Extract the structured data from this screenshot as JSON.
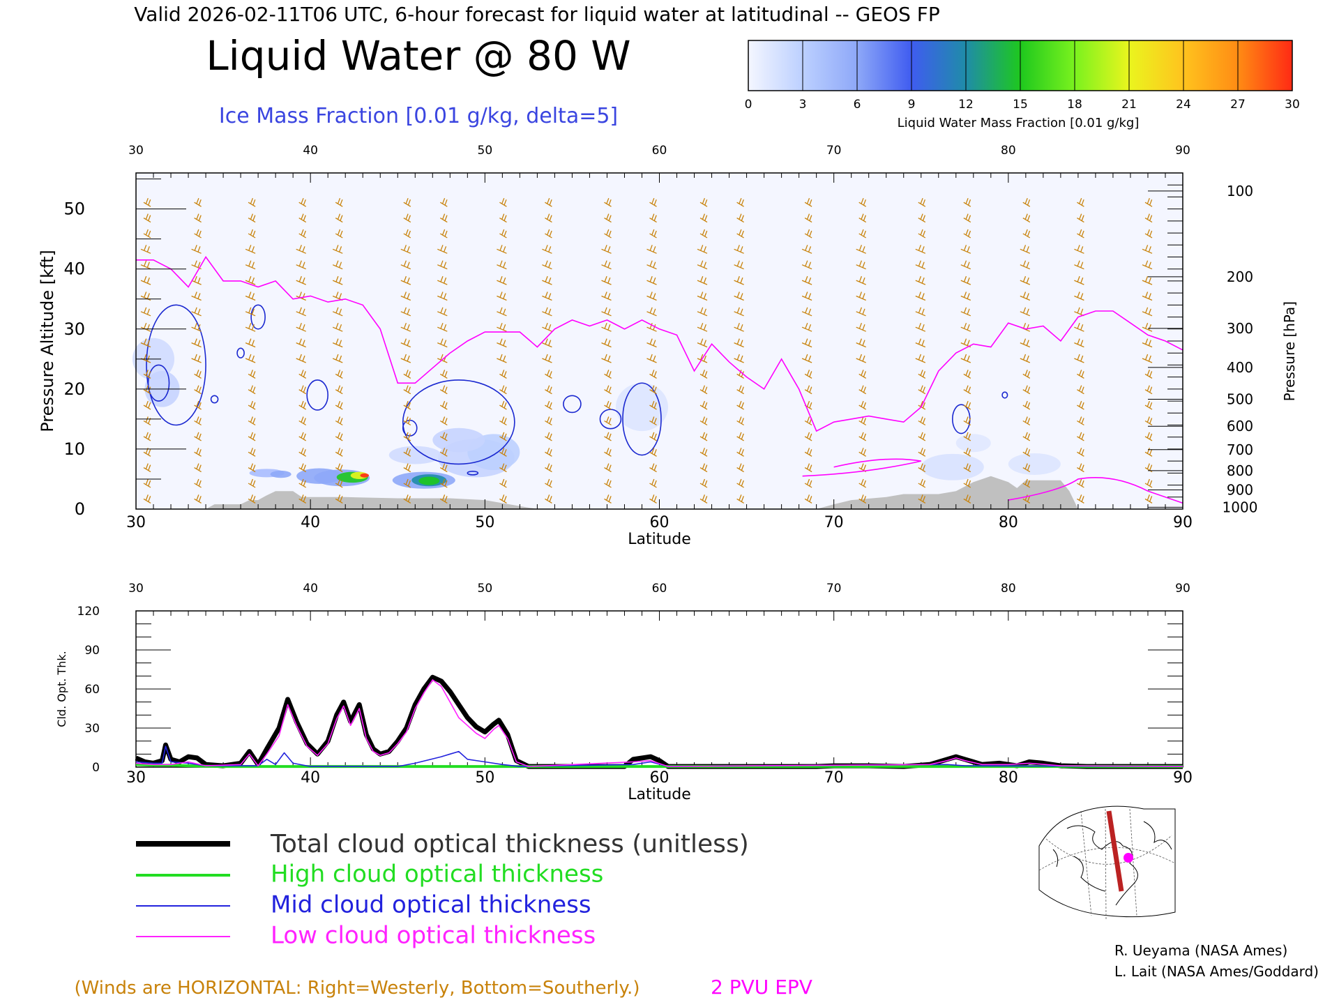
{
  "header": {
    "valid_line": "Valid 2026-02-11T06 UTC, 6-hour forecast for liquid water at latitudinal -- GEOS FP",
    "title": "Liquid Water @ 80 W",
    "ice_label": "Ice Mass Fraction [0.01 g/kg, delta=5]"
  },
  "colorbar": {
    "ticks": [
      "0",
      "3",
      "6",
      "9",
      "12",
      "15",
      "18",
      "21",
      "24",
      "27",
      "30"
    ],
    "label": "Liquid Water Mass Fraction [0.01 g/kg]",
    "colors": [
      "#f4f6ff",
      "#bcd0ff",
      "#8ea8f8",
      "#3f5cf0",
      "#1f8ca8",
      "#1ec81e",
      "#7af21e",
      "#eaf51e",
      "#ffc31e",
      "#ff8c14",
      "#ff2a14"
    ]
  },
  "colors": {
    "wind_barb": "#c8820a",
    "pvu": "#ff00ff",
    "ice": "#1a28d0",
    "terrain": "#c0c0c0",
    "ice_text": "#3a45e0",
    "total_line": "#000000",
    "high_line": "#22dd22",
    "mid_line": "#2222dd",
    "low_line": "#ff22ff"
  },
  "chart_data": [
    {
      "type": "heatmap",
      "xlabel": "Latitude",
      "ylabel_left": "Pressure Altitude [kft]",
      "ylabel_right": "Pressure [hPa]",
      "x_ticks": [
        "30",
        "40",
        "50",
        "60",
        "70",
        "80",
        "90"
      ],
      "top_ticks": [
        "30",
        "40",
        "50",
        "60",
        "70",
        "80",
        "90"
      ],
      "xlim": [
        30,
        90
      ],
      "ylim": [
        0,
        56
      ],
      "y_ticks": [
        "0",
        "10",
        "20",
        "30",
        "40",
        "50"
      ],
      "pressure_ticks": [
        {
          "label": "100",
          "kft": 53.0
        },
        {
          "label": "200",
          "kft": 38.7
        },
        {
          "label": "300",
          "kft": 30.1
        },
        {
          "label": "400",
          "kft": 23.6
        },
        {
          "label": "500",
          "kft": 18.3
        },
        {
          "label": "600",
          "kft": 13.8
        },
        {
          "label": "700",
          "kft": 9.9
        },
        {
          "label": "800",
          "kft": 6.4
        },
        {
          "label": "900",
          "kft": 3.2
        },
        {
          "label": "1000",
          "kft": 0.3
        }
      ],
      "pvu_2_line": [
        [
          30,
          41.5
        ],
        [
          31,
          41.5
        ],
        [
          32,
          40
        ],
        [
          33,
          37
        ],
        [
          34,
          42
        ],
        [
          35,
          38
        ],
        [
          36,
          38
        ],
        [
          37,
          37
        ],
        [
          38,
          38
        ],
        [
          39,
          35
        ],
        [
          40,
          35.5
        ],
        [
          41,
          34.5
        ],
        [
          42,
          35
        ],
        [
          43,
          34
        ],
        [
          44,
          30
        ],
        [
          45,
          21
        ],
        [
          46,
          21
        ],
        [
          47,
          23.5
        ],
        [
          48,
          26
        ],
        [
          49,
          28
        ],
        [
          50,
          29.5
        ],
        [
          51,
          29.5
        ],
        [
          52,
          29.5
        ],
        [
          53,
          27
        ],
        [
          54,
          30
        ],
        [
          55,
          31.5
        ],
        [
          56,
          30.5
        ],
        [
          57,
          31.5
        ],
        [
          58,
          30
        ],
        [
          59,
          31.5
        ],
        [
          60,
          30
        ],
        [
          61,
          29
        ],
        [
          62,
          23
        ],
        [
          63,
          27.5
        ],
        [
          64,
          24.5
        ],
        [
          65,
          22
        ],
        [
          66,
          20
        ],
        [
          67,
          25
        ],
        [
          68,
          20
        ],
        [
          69,
          13
        ],
        [
          70,
          14.5
        ],
        [
          71,
          15
        ],
        [
          72,
          15.5
        ],
        [
          73,
          15
        ],
        [
          74,
          14.5
        ],
        [
          75,
          17
        ],
        [
          76,
          23
        ],
        [
          77,
          26
        ],
        [
          78,
          27.5
        ],
        [
          79,
          27
        ],
        [
          80,
          31
        ],
        [
          81,
          30
        ],
        [
          82,
          30.5
        ],
        [
          83,
          28
        ],
        [
          84,
          32
        ],
        [
          85,
          33
        ],
        [
          86,
          33
        ],
        [
          87,
          31
        ],
        [
          88,
          29
        ],
        [
          89,
          28
        ],
        [
          90,
          26.5
        ]
      ],
      "terrain_kft": [
        [
          30,
          0
        ],
        [
          34,
          0
        ],
        [
          34.5,
          0.8
        ],
        [
          36,
          0.8
        ],
        [
          36.5,
          1.5
        ],
        [
          37,
          1.5
        ],
        [
          37.5,
          2.3
        ],
        [
          38,
          3
        ],
        [
          39,
          3
        ],
        [
          39.5,
          2
        ],
        [
          42,
          2
        ],
        [
          45,
          1.8
        ],
        [
          48,
          1.8
        ],
        [
          50,
          1.5
        ],
        [
          52,
          0.5
        ],
        [
          53,
          0
        ],
        [
          69,
          0
        ],
        [
          70,
          0.8
        ],
        [
          71,
          1.5
        ],
        [
          73,
          2
        ],
        [
          74,
          2.5
        ],
        [
          76,
          2.5
        ],
        [
          77,
          3
        ],
        [
          78,
          4.5
        ],
        [
          79,
          5.5
        ],
        [
          80,
          4.5
        ],
        [
          80.5,
          3.5
        ],
        [
          81,
          4.8
        ],
        [
          83,
          4.8
        ],
        [
          83.5,
          3
        ],
        [
          84,
          0
        ],
        [
          90,
          0
        ]
      ],
      "wind_lats": [
        31,
        33.5,
        37,
        39.5,
        42,
        45.5,
        48,
        51,
        54,
        57,
        60,
        62.5,
        65,
        68.5,
        72,
        75,
        78,
        81,
        84.5,
        88
      ]
    },
    {
      "type": "line",
      "xlabel": "Latitude",
      "ylabel": "Cld. Opt. Thk.",
      "x_ticks": [
        "30",
        "40",
        "50",
        "60",
        "70",
        "80",
        "90"
      ],
      "top_ticks": [
        "30",
        "40",
        "50",
        "60",
        "70",
        "80",
        "90"
      ],
      "xlim": [
        30,
        90
      ],
      "ylim": [
        0,
        120
      ],
      "y_ticks": [
        "0",
        "30",
        "60",
        "90",
        "120"
      ],
      "series": [
        {
          "name": "Total cloud optical thickness (unitless)",
          "key": "total",
          "points": [
            [
              30,
              7
            ],
            [
              30.5,
              4
            ],
            [
              31,
              3
            ],
            [
              31.5,
              5
            ],
            [
              31.7,
              17
            ],
            [
              32,
              6
            ],
            [
              32.5,
              4
            ],
            [
              33,
              8
            ],
            [
              33.5,
              7
            ],
            [
              34,
              2
            ],
            [
              35,
              1
            ],
            [
              36,
              3
            ],
            [
              36.5,
              12
            ],
            [
              37,
              2
            ],
            [
              37.5,
              14
            ],
            [
              38.2,
              30
            ],
            [
              38.7,
              52
            ],
            [
              39.2,
              35
            ],
            [
              39.8,
              18
            ],
            [
              40.4,
              10
            ],
            [
              41,
              20
            ],
            [
              41.5,
              40
            ],
            [
              41.9,
              50
            ],
            [
              42.3,
              35
            ],
            [
              42.8,
              48
            ],
            [
              43.2,
              25
            ],
            [
              43.6,
              14
            ],
            [
              44,
              10
            ],
            [
              44.5,
              12
            ],
            [
              45,
              20
            ],
            [
              45.5,
              30
            ],
            [
              46,
              48
            ],
            [
              46.5,
              60
            ],
            [
              47,
              69
            ],
            [
              47.5,
              66
            ],
            [
              48,
              58
            ],
            [
              48.5,
              48
            ],
            [
              49,
              38
            ],
            [
              49.5,
              31
            ],
            [
              50,
              27
            ],
            [
              50.5,
              33
            ],
            [
              50.8,
              36
            ],
            [
              51.3,
              25
            ],
            [
              51.8,
              5
            ],
            [
              52.5,
              0.5
            ],
            [
              58,
              0.5
            ],
            [
              58.5,
              6
            ],
            [
              59.5,
              8
            ],
            [
              60,
              5
            ],
            [
              60.5,
              0.5
            ],
            [
              69,
              0.5
            ],
            [
              70,
              1
            ],
            [
              72,
              1
            ],
            [
              74,
              0.5
            ],
            [
              75.5,
              2
            ],
            [
              76.5,
              6
            ],
            [
              77,
              8
            ],
            [
              77.5,
              6
            ],
            [
              78.5,
              2
            ],
            [
              79.5,
              3
            ],
            [
              80.5,
              1
            ],
            [
              81.2,
              4
            ],
            [
              82,
              3
            ],
            [
              83,
              1
            ],
            [
              84.5,
              0.5
            ],
            [
              90,
              0.5
            ]
          ]
        },
        {
          "name": "High cloud optical thickness",
          "key": "high",
          "points": [
            [
              30,
              2
            ],
            [
              31,
              1.5
            ],
            [
              32,
              1.5
            ],
            [
              33,
              1
            ],
            [
              35,
              0.5
            ],
            [
              40,
              0.5
            ],
            [
              50,
              0.5
            ],
            [
              60,
              0.5
            ],
            [
              70,
              0.5
            ],
            [
              80,
              0.5
            ],
            [
              90,
              0.5
            ]
          ]
        },
        {
          "name": "Mid cloud optical thickness",
          "key": "mid",
          "points": [
            [
              30,
              4
            ],
            [
              31,
              3
            ],
            [
              31.5,
              3
            ],
            [
              31.7,
              16
            ],
            [
              32,
              4
            ],
            [
              33,
              3
            ],
            [
              34,
              1
            ],
            [
              37,
              1
            ],
            [
              37.5,
              6
            ],
            [
              38,
              2
            ],
            [
              38.5,
              11
            ],
            [
              39,
              3
            ],
            [
              40,
              0.5
            ],
            [
              45,
              0.5
            ],
            [
              46,
              3
            ],
            [
              47.5,
              8
            ],
            [
              48,
              10
            ],
            [
              48.5,
              12
            ],
            [
              49,
              6
            ],
            [
              50,
              4
            ],
            [
              51,
              2
            ],
            [
              52,
              0.5
            ],
            [
              58.5,
              2
            ],
            [
              59.5,
              4
            ],
            [
              60.5,
              0.5
            ],
            [
              76.5,
              2
            ],
            [
              77.5,
              1
            ],
            [
              90,
              0.5
            ]
          ]
        },
        {
          "name": "Low cloud optical thickness",
          "key": "low",
          "points": [
            [
              30,
              3
            ],
            [
              31,
              2
            ],
            [
              32,
              2
            ],
            [
              33,
              4
            ],
            [
              34,
              1
            ],
            [
              36,
              2
            ],
            [
              36.5,
              10
            ],
            [
              37,
              1
            ],
            [
              37.5,
              10
            ],
            [
              38.2,
              24
            ],
            [
              38.7,
              48
            ],
            [
              39.2,
              32
            ],
            [
              39.8,
              16
            ],
            [
              40.4,
              9
            ],
            [
              41,
              18
            ],
            [
              41.5,
              37
            ],
            [
              41.9,
              47
            ],
            [
              42.3,
              32
            ],
            [
              42.8,
              45
            ],
            [
              43.2,
              22
            ],
            [
              43.6,
              12
            ],
            [
              44,
              9
            ],
            [
              44.5,
              11
            ],
            [
              45,
              18
            ],
            [
              45.5,
              27
            ],
            [
              46,
              45
            ],
            [
              46.5,
              57
            ],
            [
              47,
              67
            ],
            [
              47.5,
              62
            ],
            [
              48,
              50
            ],
            [
              48.5,
              38
            ],
            [
              49,
              32
            ],
            [
              49.5,
              26
            ],
            [
              50,
              22
            ],
            [
              50.5,
              29
            ],
            [
              50.8,
              32
            ],
            [
              51.3,
              22
            ],
            [
              51.8,
              4
            ],
            [
              52.5,
              0.5
            ],
            [
              58.5,
              4
            ],
            [
              59.5,
              5
            ],
            [
              60.5,
              0.5
            ],
            [
              75.5,
              2
            ],
            [
              76.5,
              5
            ],
            [
              77,
              7
            ],
            [
              77.5,
              5
            ],
            [
              78.5,
              2
            ],
            [
              80,
              2
            ],
            [
              81.2,
              3
            ],
            [
              83,
              1
            ],
            [
              90,
              0.5
            ]
          ]
        }
      ]
    }
  ],
  "legend": {
    "total": "Total cloud optical thickness (unitless)",
    "high": "High cloud optical thickness",
    "mid": "Mid cloud optical thickness",
    "low": "Low cloud optical thickness"
  },
  "footer": {
    "winds_note": "(Winds are HORIZONTAL: Right=Westerly, Bottom=Southerly.)",
    "pvu_label": "2 PVU EPV",
    "credit1": "R. Ueyama (NASA Ames)",
    "credit2": "L. Lait (NASA Ames/Goddard)"
  },
  "map": {
    "icon": "polar-map-icon"
  }
}
